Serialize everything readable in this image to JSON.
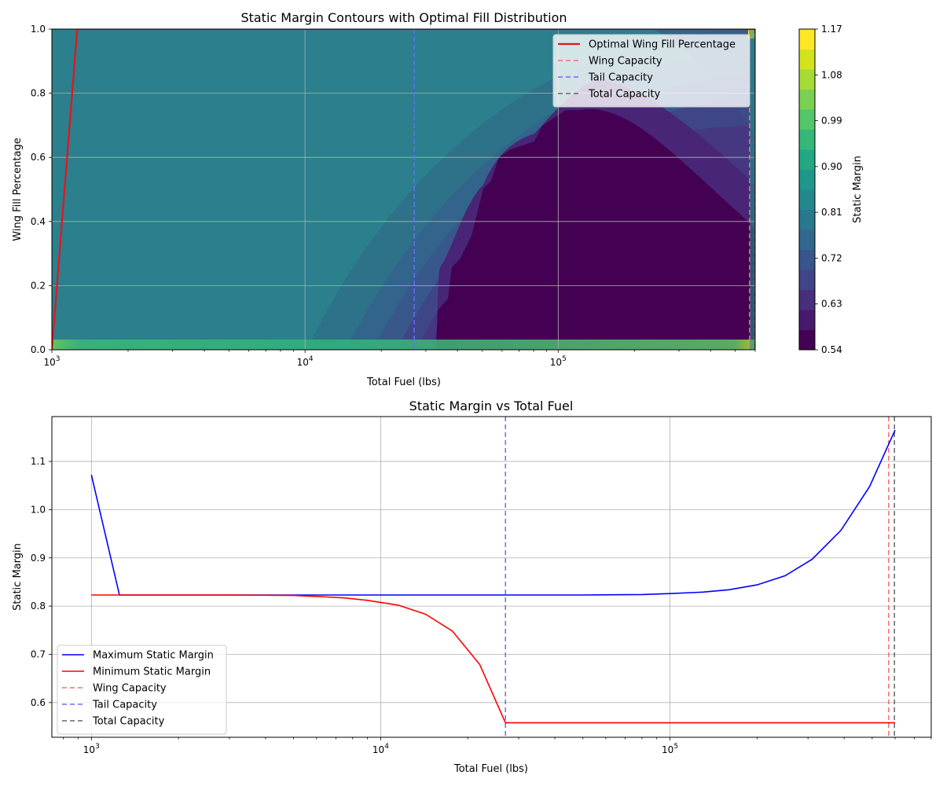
{
  "chart_data": [
    {
      "type": "heatmap",
      "title": "Static Margin Contours with Optimal Fill Distribution",
      "xlabel": "Total Fuel (lbs)",
      "ylabel": "Wing Fill Percentage",
      "xscale": "log",
      "xlim": [
        1000,
        600000
      ],
      "ylim": [
        0,
        1
      ],
      "x_ticks": [
        1000,
        10000,
        100000
      ],
      "y_ticks": [
        0.0,
        0.2,
        0.4,
        0.6,
        0.8,
        1.0
      ],
      "y_tick_labels": [
        "0.0",
        "0.2",
        "0.4",
        "0.6",
        "0.8",
        "1.0"
      ],
      "grid": true,
      "legend_position": "top-right",
      "colormap": "viridis",
      "colorbar": {
        "label": "Static Margin",
        "min": 0.54,
        "max": 1.17,
        "tick_labels": [
          "0.54",
          "0.63",
          "0.72",
          "0.81",
          "0.90",
          "0.99",
          "1.08",
          "1.17"
        ]
      },
      "series": [
        {
          "name": "Optimal Wing Fill Percentage",
          "color": "#e8141c",
          "style": "solid",
          "x": [
            1000,
            1260,
            600000
          ],
          "y": [
            0.0,
            1.0,
            1.0
          ]
        }
      ],
      "reference_lines": [
        {
          "name": "Wing Capacity",
          "color": "#ff6b6b",
          "style": "dashed",
          "x": 570000
        },
        {
          "name": "Tail Capacity",
          "color": "#6b6bff",
          "style": "dashed",
          "x": 27000
        },
        {
          "name": "Total Capacity",
          "color": "#666666",
          "style": "dashed",
          "x": 597000
        }
      ]
    },
    {
      "type": "line",
      "title": "Static Margin vs Total Fuel",
      "xlabel": "Total Fuel (lbs)",
      "ylabel": "Static Margin",
      "xscale": "log",
      "xlim": [
        730,
        800000
      ],
      "ylim": [
        0.528,
        1.193
      ],
      "x_ticks": [
        1000,
        10000,
        100000
      ],
      "y_ticks": [
        0.6,
        0.7,
        0.8,
        0.9,
        1.0,
        1.1
      ],
      "y_tick_labels": [
        "0.6",
        "0.7",
        "0.8",
        "0.9",
        "1.0",
        "1.1"
      ],
      "grid": true,
      "legend_position": "bottom-left",
      "series": [
        {
          "name": "Maximum Static Margin",
          "color": "#0000ff",
          "style": "solid",
          "x": [
            1000,
            1250,
            2000,
            5000,
            10000,
            20000,
            30000,
            50000,
            80000,
            100000,
            130000,
            160000,
            200000,
            250000,
            310000,
            390000,
            490000,
            600000
          ],
          "y": [
            1.072,
            0.823,
            0.823,
            0.823,
            0.823,
            0.823,
            0.823,
            0.823,
            0.824,
            0.826,
            0.829,
            0.834,
            0.844,
            0.863,
            0.897,
            0.957,
            1.048,
            1.165
          ]
        },
        {
          "name": "Minimum Static Margin",
          "color": "#ff0000",
          "style": "solid",
          "x": [
            1000,
            1250,
            3000,
            5000,
            6500,
            7500,
            9000,
            11500,
            14300,
            17700,
            22000,
            27000,
            100000,
            600000
          ],
          "y": [
            0.823,
            0.823,
            0.823,
            0.822,
            0.819,
            0.817,
            0.812,
            0.802,
            0.783,
            0.748,
            0.679,
            0.558,
            0.558,
            0.558
          ]
        }
      ],
      "reference_lines": [
        {
          "name": "Wing Capacity",
          "color": "#ff6b6b",
          "style": "dashed",
          "x": 570000
        },
        {
          "name": "Tail Capacity",
          "color": "#6b6bff",
          "style": "dashed",
          "x": 27000
        },
        {
          "name": "Total Capacity",
          "color": "#666666",
          "style": "dashed",
          "x": 597000
        }
      ]
    }
  ]
}
